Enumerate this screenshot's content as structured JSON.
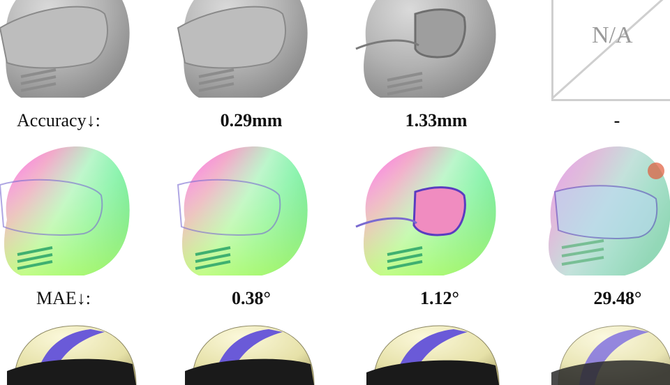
{
  "row_labels": {
    "accuracy": "Accuracy↓:",
    "mae": "MAE↓:"
  },
  "accuracy_values": [
    "0.29mm",
    "1.33mm",
    "-"
  ],
  "mae_values": [
    "0.38°",
    "1.12°",
    "29.48°"
  ],
  "placeholder": "N/A",
  "colors": {
    "geometry_gray": "#b4b4b4",
    "stripe_blue": "#6a5ad8",
    "shell_cream": "#eae6b4",
    "visor_dark": "#1a1a1a"
  }
}
